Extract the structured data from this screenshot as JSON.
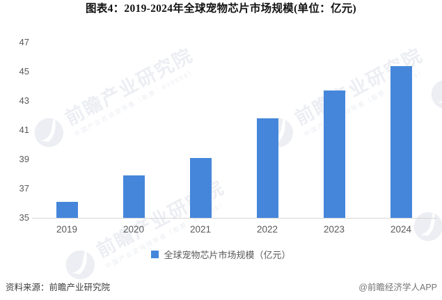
{
  "chart_data": {
    "type": "bar",
    "title": "图表4：2019-2024年全球宠物芯片市场规模(单位：亿元)",
    "categories": [
      "2019",
      "2020",
      "2021",
      "2022",
      "2023",
      "2024"
    ],
    "series": [
      {
        "name": "全球宠物芯片市场规模（亿元）",
        "values": [
          36.1,
          37.9,
          39.1,
          41.8,
          43.7,
          45.4
        ]
      }
    ],
    "xlabel": "",
    "ylabel": "",
    "ylim": [
      35,
      47
    ],
    "yticks": [
      35,
      37,
      39,
      41,
      43,
      45,
      47
    ],
    "grid": false,
    "legend_position": "bottom",
    "bar_color": "#4586db"
  },
  "watermark": {
    "text": "前瞻产业研究院",
    "subtext": "中国产业咨询领导者（股票：839599）",
    "color": "#eceef3"
  },
  "footer": {
    "source": "资料来源：前瞻产业研究院",
    "credit": "@前瞻经济学人APP"
  }
}
